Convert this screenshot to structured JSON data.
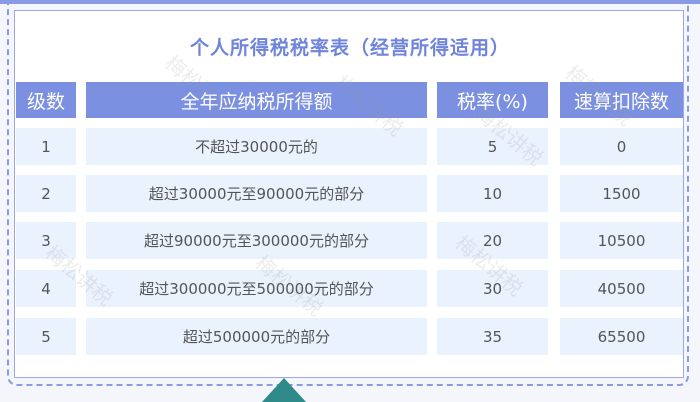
{
  "title": "个人所得税税率表（经营所得适用）",
  "headers": [
    "级数",
    "全年应纳税所得额",
    "税率(%)",
    "速算扣除数"
  ],
  "rows": [
    [
      "1",
      "不超过30000元的",
      "5",
      "0"
    ],
    [
      "2",
      "超过30000元至90000元的部分",
      "10",
      "1500"
    ],
    [
      "3",
      "超过90000元至300000元的部分",
      "20",
      "10500"
    ],
    [
      "4",
      "超过300000元至500000元的部分",
      "30",
      "40500"
    ],
    [
      "5",
      "超过500000元的部分",
      "35",
      "65500"
    ]
  ],
  "watermark": "梅松讲税",
  "colors": {
    "accent": "#7b90e0",
    "cell_bg": "#eaf2fd",
    "title": "#6f84db"
  }
}
